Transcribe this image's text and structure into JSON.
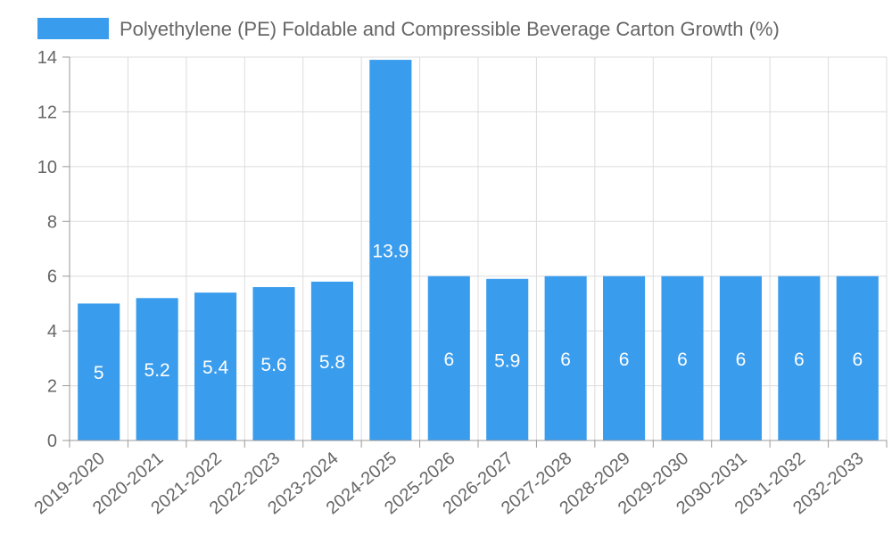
{
  "chart_data": {
    "type": "bar",
    "title": "",
    "xlabel": "",
    "ylabel": "",
    "ylim": [
      0,
      14
    ],
    "yticks": [
      0,
      2,
      4,
      6,
      8,
      10,
      12,
      14
    ],
    "grid": true,
    "legend": {
      "position": "top"
    },
    "categories": [
      "2019-2020",
      "2020-2021",
      "2021-2022",
      "2022-2023",
      "2023-2024",
      "2024-2025",
      "2025-2026",
      "2026-2027",
      "2027-2028",
      "2028-2029",
      "2029-2030",
      "2030-2031",
      "2031-2032",
      "2032-2033"
    ],
    "series": [
      {
        "name": "Polyethylene (PE) Foldable and Compressible Beverage Carton Growth (%)",
        "color": "#3a9ced",
        "values": [
          5,
          5.2,
          5.4,
          5.6,
          5.8,
          13.9,
          6,
          5.9,
          6,
          6,
          6,
          6,
          6,
          6
        ],
        "labels": [
          "5",
          "5.2",
          "5.4",
          "5.6",
          "5.8",
          "13.9",
          "6",
          "5.9",
          "6",
          "6",
          "6",
          "6",
          "6",
          "6"
        ]
      }
    ]
  }
}
